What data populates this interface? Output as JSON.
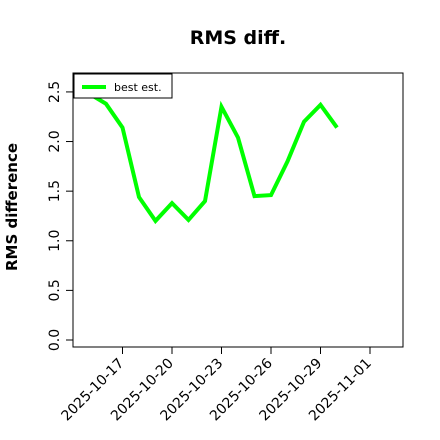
{
  "chart_data": {
    "type": "line",
    "title": "RMS diff.",
    "xlabel": "",
    "ylabel": "RMS difference",
    "x_ticks": [
      "2025-10-17",
      "2025-10-20",
      "2025-10-23",
      "2025-10-26",
      "2025-10-29",
      "2025-11-01"
    ],
    "x_range": [
      "2025-10-14",
      "2025-11-03"
    ],
    "ylim": [
      0.0,
      2.6
    ],
    "y_ticks": [
      "0.0",
      "0.5",
      "1.0",
      "1.5",
      "2.0",
      "2.5"
    ],
    "grid": false,
    "legend": {
      "placement": "top-left",
      "entries": [
        "best est."
      ]
    },
    "series": [
      {
        "name": "best est.",
        "color": "#00ff00",
        "points": [
          {
            "x": "2025-10-15",
            "y": 2.48
          },
          {
            "x": "2025-10-16",
            "y": 2.38
          },
          {
            "x": "2025-10-17",
            "y": 2.14
          },
          {
            "x": "2025-10-18",
            "y": 1.44
          },
          {
            "x": "2025-10-19",
            "y": 1.2
          },
          {
            "x": "2025-10-20",
            "y": 1.38
          },
          {
            "x": "2025-10-21",
            "y": 1.21
          },
          {
            "x": "2025-10-22",
            "y": 1.4
          },
          {
            "x": "2025-10-23",
            "y": 2.35
          },
          {
            "x": "2025-10-24",
            "y": 2.04
          },
          {
            "x": "2025-10-25",
            "y": 1.45
          },
          {
            "x": "2025-10-26",
            "y": 1.46
          },
          {
            "x": "2025-10-27",
            "y": 1.8
          },
          {
            "x": "2025-10-28",
            "y": 2.2
          },
          {
            "x": "2025-10-29",
            "y": 2.37
          },
          {
            "x": "2025-10-30",
            "y": 2.14
          }
        ]
      }
    ]
  }
}
